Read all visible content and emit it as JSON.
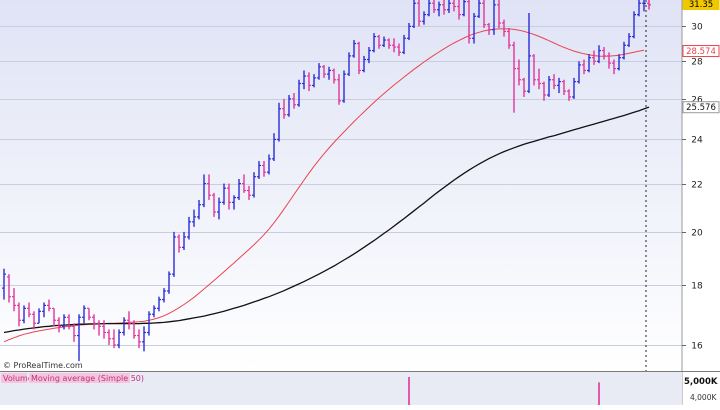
{
  "chart_data": [
    {
      "type": "ohlc",
      "role": "price panel",
      "y_scale": "log",
      "ylim": [
        15.2,
        31.6
      ],
      "y_ticks": [
        16,
        18,
        20,
        22,
        24,
        26,
        28,
        30
      ],
      "y_tick_labels": [
        "16",
        "18",
        "20",
        "22",
        "24",
        "26",
        "28",
        "30"
      ],
      "grid": true,
      "up_color": "#2b2bd6",
      "down_color": "#e0359a",
      "bars": [
        [
          17.9,
          18.6,
          17.5,
          18.4
        ],
        [
          18.3,
          18.4,
          17.4,
          17.6
        ],
        [
          17.6,
          17.9,
          17.1,
          17.3
        ],
        [
          17.3,
          17.4,
          16.6,
          16.8
        ],
        [
          16.8,
          17.3,
          16.7,
          17.2
        ],
        [
          17.2,
          17.4,
          16.9,
          17.0
        ],
        [
          17.0,
          17.1,
          16.5,
          16.7
        ],
        [
          16.7,
          17.2,
          16.7,
          17.1
        ],
        [
          17.1,
          17.4,
          16.9,
          17.3
        ],
        [
          17.3,
          17.5,
          17.1,
          17.2
        ],
        [
          17.2,
          17.2,
          16.6,
          16.8
        ],
        [
          16.8,
          16.9,
          16.4,
          16.6
        ],
        [
          16.6,
          17.0,
          16.5,
          16.9
        ],
        [
          16.9,
          17.0,
          16.5,
          16.6
        ],
        [
          16.6,
          16.7,
          16.1,
          16.3
        ],
        [
          16.3,
          17.0,
          15.5,
          16.9
        ],
        [
          16.9,
          17.3,
          16.7,
          17.2
        ],
        [
          17.2,
          17.2,
          16.8,
          16.9
        ],
        [
          16.9,
          17.0,
          16.5,
          16.7
        ],
        [
          16.7,
          16.8,
          16.3,
          16.6
        ],
        [
          16.6,
          16.8,
          16.2,
          16.4
        ],
        [
          16.4,
          16.5,
          16.0,
          16.2
        ],
        [
          16.2,
          16.5,
          15.9,
          16.0
        ],
        [
          16.0,
          16.5,
          15.9,
          16.4
        ],
        [
          16.4,
          16.9,
          16.3,
          16.8
        ],
        [
          16.8,
          17.1,
          16.5,
          16.7
        ],
        [
          16.7,
          16.8,
          16.2,
          16.3
        ],
        [
          16.3,
          16.5,
          15.9,
          16.1
        ],
        [
          16.1,
          16.6,
          15.8,
          16.4
        ],
        [
          16.4,
          17.1,
          16.3,
          17.0
        ],
        [
          17.0,
          17.3,
          16.9,
          17.2
        ],
        [
          17.2,
          17.6,
          17.1,
          17.5
        ],
        [
          17.5,
          17.9,
          17.4,
          17.8
        ],
        [
          17.8,
          18.5,
          17.7,
          18.4
        ],
        [
          18.4,
          20.0,
          18.3,
          19.8
        ],
        [
          19.8,
          19.9,
          19.2,
          19.4
        ],
        [
          19.4,
          20.0,
          19.3,
          19.8
        ],
        [
          19.8,
          20.6,
          19.7,
          20.4
        ],
        [
          20.4,
          20.9,
          20.2,
          20.6
        ],
        [
          20.6,
          21.3,
          20.5,
          21.1
        ],
        [
          21.1,
          22.4,
          21.0,
          22.0
        ],
        [
          22.0,
          22.4,
          21.3,
          21.5
        ],
        [
          21.5,
          21.6,
          20.6,
          20.8
        ],
        [
          20.8,
          21.4,
          20.5,
          21.2
        ],
        [
          21.2,
          22.0,
          21.1,
          21.8
        ],
        [
          21.8,
          22.0,
          20.9,
          21.2
        ],
        [
          21.2,
          21.5,
          20.9,
          21.4
        ],
        [
          21.4,
          22.2,
          21.3,
          22.0
        ],
        [
          22.0,
          22.4,
          21.6,
          21.7
        ],
        [
          21.7,
          21.9,
          21.3,
          21.5
        ],
        [
          21.5,
          22.5,
          21.4,
          22.3
        ],
        [
          22.3,
          23.0,
          22.2,
          22.8
        ],
        [
          22.8,
          23.0,
          22.3,
          22.5
        ],
        [
          22.5,
          23.3,
          22.4,
          23.1
        ],
        [
          23.1,
          24.3,
          23.0,
          24.0
        ],
        [
          24.0,
          25.8,
          23.9,
          25.5
        ],
        [
          25.5,
          26.0,
          25.0,
          25.2
        ],
        [
          25.2,
          26.2,
          25.1,
          26.0
        ],
        [
          26.0,
          26.3,
          25.5,
          25.7
        ],
        [
          25.7,
          27.0,
          25.6,
          26.8
        ],
        [
          26.8,
          27.5,
          26.5,
          27.2
        ],
        [
          27.2,
          27.4,
          26.4,
          26.7
        ],
        [
          26.7,
          27.3,
          26.6,
          27.1
        ],
        [
          27.1,
          27.9,
          27.0,
          27.7
        ],
        [
          27.7,
          27.8,
          27.1,
          27.3
        ],
        [
          27.3,
          27.7,
          27.0,
          27.5
        ],
        [
          27.5,
          27.6,
          26.8,
          27.0
        ],
        [
          27.0,
          27.3,
          25.7,
          25.9
        ],
        [
          25.9,
          27.5,
          25.8,
          27.3
        ],
        [
          27.3,
          28.5,
          27.2,
          28.3
        ],
        [
          28.3,
          29.2,
          28.2,
          29.0
        ],
        [
          29.0,
          29.1,
          27.3,
          27.5
        ],
        [
          27.5,
          28.3,
          27.4,
          28.1
        ],
        [
          28.1,
          28.8,
          27.9,
          28.6
        ],
        [
          28.6,
          29.6,
          28.5,
          29.4
        ],
        [
          29.4,
          29.5,
          28.7,
          28.9
        ],
        [
          28.9,
          29.4,
          28.8,
          29.2
        ],
        [
          29.2,
          29.3,
          28.7,
          28.9
        ],
        [
          28.9,
          29.3,
          28.5,
          28.8
        ],
        [
          28.8,
          29.0,
          28.3,
          28.5
        ],
        [
          28.5,
          29.5,
          28.4,
          29.3
        ],
        [
          29.3,
          30.2,
          29.2,
          30.0
        ],
        [
          30.0,
          31.6,
          29.9,
          31.4
        ],
        [
          31.4,
          31.6,
          30.0,
          30.3
        ],
        [
          30.3,
          30.9,
          30.1,
          30.7
        ],
        [
          30.7,
          31.6,
          30.6,
          31.4
        ],
        [
          31.4,
          31.6,
          30.8,
          31.0
        ],
        [
          31.0,
          31.5,
          30.6,
          31.3
        ],
        [
          31.3,
          31.6,
          30.7,
          31.0
        ],
        [
          31.0,
          31.6,
          30.8,
          31.4
        ],
        [
          31.4,
          31.6,
          30.9,
          31.2
        ],
        [
          31.2,
          31.6,
          30.4,
          30.7
        ],
        [
          30.7,
          31.6,
          30.6,
          31.5
        ],
        [
          31.5,
          31.6,
          29.0,
          29.3
        ],
        [
          29.3,
          30.8,
          29.0,
          30.6
        ],
        [
          30.6,
          31.6,
          30.5,
          31.4
        ],
        [
          31.4,
          31.6,
          29.9,
          30.1
        ],
        [
          30.1,
          30.2,
          29.5,
          29.8
        ],
        [
          29.8,
          31.6,
          29.5,
          31.3
        ],
        [
          31.3,
          31.6,
          29.9,
          30.2
        ],
        [
          30.2,
          30.4,
          29.4,
          29.7
        ],
        [
          29.7,
          29.9,
          28.7,
          28.9
        ],
        [
          28.9,
          29.1,
          25.3,
          27.6
        ],
        [
          27.6,
          28.1,
          26.7,
          27.0
        ],
        [
          27.0,
          27.1,
          26.1,
          26.4
        ],
        [
          26.4,
          30.8,
          26.3,
          28.3
        ],
        [
          28.3,
          28.4,
          26.7,
          27.0
        ],
        [
          27.0,
          27.6,
          26.5,
          26.8
        ],
        [
          26.8,
          26.9,
          25.9,
          26.2
        ],
        [
          26.2,
          27.2,
          26.1,
          27.0
        ],
        [
          27.0,
          27.3,
          26.5,
          26.7
        ],
        [
          26.7,
          27.1,
          26.3,
          26.9
        ],
        [
          26.9,
          27.0,
          26.2,
          26.4
        ],
        [
          26.4,
          26.5,
          25.9,
          26.1
        ],
        [
          26.1,
          27.1,
          26.0,
          26.9
        ],
        [
          26.9,
          28.0,
          26.8,
          27.8
        ],
        [
          27.8,
          28.1,
          27.3,
          27.5
        ],
        [
          27.5,
          28.4,
          27.4,
          28.2
        ],
        [
          28.2,
          28.6,
          27.8,
          28.0
        ],
        [
          28.0,
          28.9,
          27.9,
          28.6
        ],
        [
          28.6,
          28.8,
          28.1,
          28.3
        ],
        [
          28.3,
          28.5,
          27.6,
          27.9
        ],
        [
          27.9,
          28.1,
          27.3,
          27.6
        ],
        [
          27.6,
          28.4,
          27.5,
          28.2
        ],
        [
          28.2,
          29.1,
          28.1,
          28.9
        ],
        [
          28.9,
          29.6,
          28.8,
          29.4
        ],
        [
          29.4,
          30.9,
          29.3,
          30.7
        ],
        [
          30.7,
          31.6,
          30.6,
          31.4
        ],
        [
          31.4,
          31.6,
          30.9,
          31.4
        ],
        [
          31.4,
          31.6,
          31.0,
          31.3
        ]
      ],
      "series": [
        {
          "color": "#e8454f",
          "values": [
            16.1,
            16.17,
            16.23,
            16.29,
            16.34,
            16.38,
            16.42,
            16.45,
            16.48,
            16.51,
            16.54,
            16.56,
            16.58,
            16.6,
            16.62,
            16.64,
            16.65,
            16.66,
            16.67,
            16.68,
            16.69,
            16.7,
            16.7,
            16.71,
            16.72,
            16.73,
            16.74,
            16.75,
            16.77,
            16.8,
            16.84,
            16.89,
            16.95,
            17.03,
            17.12,
            17.22,
            17.33,
            17.45,
            17.58,
            17.72,
            17.87,
            18.02,
            18.17,
            18.33,
            18.49,
            18.65,
            18.81,
            18.98,
            19.15,
            19.32,
            19.5,
            19.69,
            19.89,
            20.11,
            20.36,
            20.63,
            20.92,
            21.22,
            21.53,
            21.84,
            22.15,
            22.46,
            22.76,
            23.05,
            23.33,
            23.6,
            23.86,
            24.11,
            24.36,
            24.61,
            24.86,
            25.1,
            25.34,
            25.58,
            25.82,
            26.05,
            26.28,
            26.5,
            26.72,
            26.93,
            27.14,
            27.35,
            27.56,
            27.76,
            27.96,
            28.15,
            28.34,
            28.52,
            28.7,
            28.87,
            29.03,
            29.18,
            29.32,
            29.45,
            29.56,
            29.65,
            29.73,
            29.79,
            29.83,
            29.85,
            29.86,
            29.85,
            29.82,
            29.77,
            29.7,
            29.62,
            29.52,
            29.41,
            29.29,
            29.16,
            29.03,
            28.9,
            28.78,
            28.67,
            28.57,
            28.49,
            28.42,
            28.36,
            28.32,
            28.29,
            28.28,
            28.29,
            28.31,
            28.34,
            28.39,
            28.45,
            28.51,
            28.57,
            28.62
          ]
        },
        {
          "color": "#111111",
          "values": [
            16.4,
            16.43,
            16.46,
            16.48,
            16.51,
            16.53,
            16.55,
            16.57,
            16.59,
            16.6,
            16.62,
            16.63,
            16.64,
            16.65,
            16.66,
            16.67,
            16.67,
            16.68,
            16.68,
            16.68,
            16.69,
            16.69,
            16.69,
            16.69,
            16.69,
            16.69,
            16.69,
            16.69,
            16.7,
            16.7,
            16.71,
            16.72,
            16.73,
            16.75,
            16.77,
            16.79,
            16.82,
            16.85,
            16.88,
            16.91,
            16.94,
            16.98,
            17.02,
            17.06,
            17.1,
            17.15,
            17.2,
            17.25,
            17.3,
            17.36,
            17.42,
            17.48,
            17.54,
            17.6,
            17.67,
            17.74,
            17.81,
            17.89,
            17.97,
            18.05,
            18.13,
            18.22,
            18.31,
            18.4,
            18.5,
            18.6,
            18.7,
            18.81,
            18.92,
            19.03,
            19.15,
            19.27,
            19.4,
            19.53,
            19.66,
            19.8,
            19.94,
            20.08,
            20.23,
            20.38,
            20.53,
            20.69,
            20.85,
            21.01,
            21.17,
            21.34,
            21.51,
            21.67,
            21.83,
            21.99,
            22.15,
            22.3,
            22.45,
            22.59,
            22.73,
            22.86,
            22.99,
            23.11,
            23.22,
            23.33,
            23.43,
            23.52,
            23.61,
            23.69,
            23.77,
            23.84,
            23.91,
            23.98,
            24.05,
            24.12,
            24.18,
            24.25,
            24.32,
            24.39,
            24.46,
            24.53,
            24.6,
            24.67,
            24.74,
            24.81,
            24.88,
            24.95,
            25.02,
            25.09,
            25.16,
            25.24,
            25.32,
            25.4,
            25.49,
            25.58
          ]
        }
      ],
      "price_tags": [
        {
          "value": 31.35,
          "label": "31.35",
          "bg": "#f0c800",
          "fg": "#000000"
        },
        {
          "value": 28.574,
          "label": "28.574",
          "bg": "#ffffff",
          "fg": "#e8454f",
          "border": "#e8454f"
        },
        {
          "value": 25.576,
          "label": "25.576",
          "bg": "#ffffff",
          "fg": "#111111",
          "border": "#999999"
        }
      ]
    },
    {
      "type": "bar",
      "role": "volume panel",
      "title": "Volume",
      "subtitle": "Moving average (Simple 50)",
      "y_tick_labels": [
        "5,000K",
        "4,000K"
      ],
      "bar_color": "#e0359a",
      "spikes": [
        [
          81,
          5200
        ],
        [
          119,
          4200
        ]
      ]
    }
  ],
  "footer": {
    "copyright": "© ProRealTime.com"
  }
}
